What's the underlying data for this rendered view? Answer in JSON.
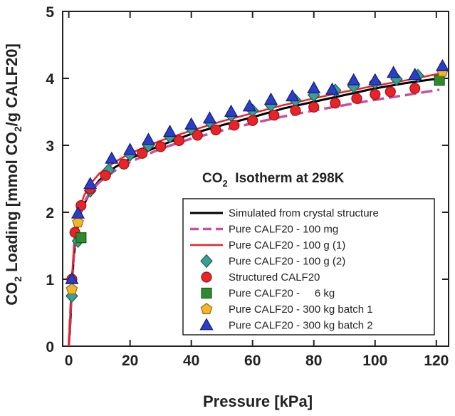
{
  "chart_data": {
    "type": "scatter",
    "title": "",
    "annotation": {
      "prefix": "CO",
      "sub": "2",
      "suffix": "  Isotherm at 298K"
    },
    "xlabel": "Pressure [kPa]",
    "ylabel": {
      "prefix": "CO",
      "sub1": "2",
      "mid": " Loading [mmol CO",
      "sub2": "2",
      "suffix": "/g CALF20]"
    },
    "xlim": [
      -2,
      124
    ],
    "ylim": [
      0,
      5
    ],
    "xticks": [
      0,
      20,
      40,
      60,
      80,
      100,
      120
    ],
    "yticks": [
      0,
      1,
      2,
      3,
      4,
      5
    ],
    "grid": false,
    "legend_position": "bottom-right",
    "series": [
      {
        "name": "Simulated from crystal structure",
        "kind": "line",
        "color": "#000000",
        "dash": "none",
        "width": 3,
        "x": [
          0,
          0.5,
          1,
          1.5,
          2,
          3,
          4,
          5,
          7,
          10,
          15,
          20,
          30,
          40,
          50,
          60,
          70,
          80,
          90,
          100,
          110,
          121
        ],
        "y": [
          0,
          0.35,
          0.9,
          1.25,
          1.5,
          1.8,
          2.0,
          2.12,
          2.3,
          2.48,
          2.67,
          2.8,
          3.0,
          3.17,
          3.3,
          3.42,
          3.55,
          3.65,
          3.75,
          3.85,
          3.93,
          4.0
        ]
      },
      {
        "name": "Pure CALF20 - 100 mg",
        "kind": "line",
        "color": "#c8509c",
        "dash": "16,7",
        "width": 3.5,
        "x": [
          0,
          1,
          2,
          3,
          5,
          7,
          10,
          15,
          20,
          30,
          40,
          50,
          60,
          70,
          80,
          90,
          100,
          110,
          121
        ],
        "y": [
          0,
          0.95,
          1.6,
          1.9,
          2.15,
          2.3,
          2.45,
          2.62,
          2.75,
          2.95,
          3.1,
          3.22,
          3.33,
          3.43,
          3.52,
          3.6,
          3.68,
          3.75,
          3.83
        ]
      },
      {
        "name": "Pure CALF20 - 100 g (1)",
        "kind": "line",
        "color": "#e8232a",
        "dash": "none",
        "width": 2.5,
        "x": [
          0,
          1,
          2,
          3,
          5,
          7,
          10,
          15,
          20,
          30,
          40,
          50,
          60,
          70,
          80,
          90,
          100,
          110,
          121
        ],
        "y": [
          0,
          1.0,
          1.7,
          2.0,
          2.25,
          2.42,
          2.58,
          2.75,
          2.88,
          3.07,
          3.22,
          3.36,
          3.48,
          3.6,
          3.7,
          3.8,
          3.89,
          3.97,
          4.07
        ]
      },
      {
        "name": "Pure CALF20 - 100 g (2)",
        "kind": "marker",
        "marker": "diamond",
        "color": "#3a9e92",
        "stroke": "#1e5e56",
        "size": 8,
        "x": [
          1,
          3,
          7,
          13,
          20,
          26,
          33,
          40,
          46,
          53,
          60,
          66,
          74,
          80,
          87,
          93,
          100,
          107,
          114
        ],
        "y": [
          0.75,
          1.57,
          2.32,
          2.63,
          2.86,
          3.0,
          3.13,
          3.25,
          3.35,
          3.45,
          3.52,
          3.6,
          3.67,
          3.75,
          3.82,
          3.88,
          3.94,
          3.99,
          4.04
        ]
      },
      {
        "name": "Structured CALF20",
        "kind": "marker",
        "marker": "circle",
        "color": "#e8232a",
        "stroke": "#9c1414",
        "size": 7,
        "x": [
          1,
          2,
          4,
          7,
          12,
          18,
          24,
          30,
          36,
          42,
          48,
          54,
          60,
          67,
          74,
          80,
          87,
          94,
          100,
          105,
          113
        ],
        "y": [
          1.0,
          1.7,
          2.1,
          2.35,
          2.55,
          2.72,
          2.88,
          2.98,
          3.07,
          3.15,
          3.23,
          3.3,
          3.37,
          3.45,
          3.52,
          3.57,
          3.63,
          3.7,
          3.76,
          3.8,
          3.85
        ]
      },
      {
        "name": "Pure CALF20 -     6 kg",
        "kind": "marker",
        "marker": "square",
        "color": "#2f8a2f",
        "stroke": "#175817",
        "size": 7,
        "x": [
          4,
          121
        ],
        "y": [
          1.62,
          3.97
        ]
      },
      {
        "name": "Pure CALF20 - 300 kg batch 1",
        "kind": "marker",
        "marker": "pentagon",
        "color": "#f2b52a",
        "stroke": "#9a6d08",
        "size": 8,
        "x": [
          1,
          3,
          122
        ],
        "y": [
          0.85,
          1.85,
          4.1
        ]
      },
      {
        "name": "Pure CALF20 - 300 kg batch 2",
        "kind": "marker",
        "marker": "triangle",
        "color": "#2a3ec8",
        "stroke": "#141f78",
        "size": 9,
        "x": [
          1,
          3,
          7,
          14,
          20,
          26,
          33,
          40,
          46,
          53,
          59,
          66,
          73,
          80,
          86,
          93,
          100,
          106,
          113,
          122
        ],
        "y": [
          1.0,
          1.98,
          2.42,
          2.8,
          2.93,
          3.08,
          3.2,
          3.31,
          3.4,
          3.5,
          3.58,
          3.68,
          3.73,
          3.85,
          3.83,
          3.97,
          3.97,
          4.08,
          4.05,
          4.18
        ]
      }
    ]
  }
}
